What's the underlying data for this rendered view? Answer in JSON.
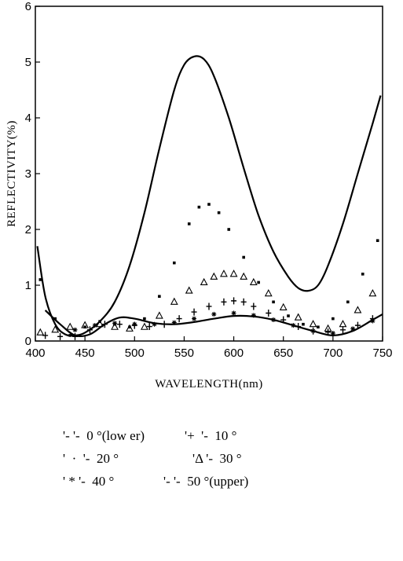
{
  "chart_data": {
    "type": "line",
    "xlabel": "WAVELENGTH(nm)",
    "ylabel": "REFLECTIVITY(%)",
    "xlim": [
      400,
      750
    ],
    "ylim": [
      0,
      6
    ],
    "xticks": [
      "400",
      "450",
      "500",
      "550",
      "600",
      "650",
      "700",
      "750"
    ],
    "yticks": [
      "0",
      "1",
      "2",
      "3",
      "4",
      "5",
      "6"
    ],
    "grid": false,
    "legend_position": "below",
    "series": [
      {
        "name": "0°(lower)",
        "marker": "line",
        "x": [
          410,
          425,
          440,
          455,
          470,
          485,
          500,
          520,
          540,
          560,
          580,
          600,
          620,
          640,
          660,
          680,
          700,
          720,
          740,
          750
        ],
        "y": [
          0.55,
          0.3,
          0.1,
          0.12,
          0.3,
          0.42,
          0.4,
          0.32,
          0.3,
          0.34,
          0.4,
          0.45,
          0.44,
          0.38,
          0.28,
          0.18,
          0.1,
          0.18,
          0.38,
          0.48
        ]
      },
      {
        "name": "10°",
        "marker": "+",
        "x": [
          410,
          425,
          440,
          455,
          470,
          485,
          500,
          515,
          530,
          545,
          560,
          575,
          590,
          600,
          610,
          620,
          635,
          650,
          665,
          680,
          695,
          710,
          725,
          740
        ],
        "y": [
          0.1,
          0.08,
          0.08,
          0.2,
          0.3,
          0.3,
          0.28,
          0.26,
          0.3,
          0.4,
          0.52,
          0.62,
          0.7,
          0.72,
          0.7,
          0.62,
          0.5,
          0.38,
          0.26,
          0.18,
          0.16,
          0.2,
          0.28,
          0.4
        ]
      },
      {
        "name": "20°",
        "marker": "dot",
        "x": [
          405,
          420,
          435,
          450,
          465,
          480,
          495,
          510,
          525,
          540,
          555,
          565,
          575,
          585,
          595,
          610,
          625,
          640,
          655,
          670,
          685,
          700,
          715,
          730,
          745
        ],
        "y": [
          1.1,
          0.4,
          0.1,
          0.25,
          0.35,
          0.3,
          0.25,
          0.4,
          0.8,
          1.4,
          2.1,
          2.4,
          2.45,
          2.3,
          2.0,
          1.5,
          1.05,
          0.7,
          0.45,
          0.3,
          0.25,
          0.4,
          0.7,
          1.2,
          1.8
        ]
      },
      {
        "name": "30°",
        "marker": "triangle",
        "x": [
          405,
          420,
          435,
          450,
          465,
          480,
          495,
          510,
          525,
          540,
          555,
          570,
          580,
          590,
          600,
          610,
          620,
          635,
          650,
          665,
          680,
          695,
          710,
          725,
          740
        ],
        "y": [
          0.15,
          0.2,
          0.25,
          0.28,
          0.3,
          0.25,
          0.22,
          0.25,
          0.45,
          0.7,
          0.9,
          1.05,
          1.15,
          1.2,
          1.2,
          1.15,
          1.05,
          0.85,
          0.6,
          0.42,
          0.3,
          0.22,
          0.3,
          0.55,
          0.85
        ]
      },
      {
        "name": "40°",
        "marker": "*",
        "x": [
          440,
          460,
          480,
          500,
          520,
          540,
          560,
          580,
          600,
          620,
          640,
          660,
          680,
          700,
          720,
          740
        ],
        "y": [
          0.2,
          0.28,
          0.32,
          0.3,
          0.3,
          0.33,
          0.4,
          0.48,
          0.5,
          0.46,
          0.38,
          0.28,
          0.18,
          0.14,
          0.22,
          0.36
        ]
      },
      {
        "name": "50°(upper)",
        "marker": "line",
        "x": [
          402,
          410,
          420,
          430,
          440,
          450,
          465,
          480,
          495,
          510,
          525,
          540,
          550,
          560,
          570,
          580,
          595,
          610,
          625,
          640,
          655,
          665,
          675,
          685,
          695,
          710,
          725,
          740,
          748
        ],
        "y": [
          1.7,
          0.8,
          0.3,
          0.12,
          0.1,
          0.15,
          0.35,
          0.7,
          1.35,
          2.3,
          3.45,
          4.5,
          4.95,
          5.1,
          5.05,
          4.75,
          4.0,
          3.1,
          2.25,
          1.6,
          1.15,
          0.95,
          0.9,
          1.0,
          1.35,
          2.1,
          3.0,
          3.9,
          4.4
        ]
      }
    ]
  },
  "legend": {
    "rows": [
      [
        "'- '-  0 °(low er)",
        "'+  '-  10 °"
      ],
      [
        "'  ·  '-  20 °",
        "'Δ '-  30 °"
      ],
      [
        "' * '-  40 °",
        "'- '-  50 °(upper)"
      ]
    ]
  }
}
